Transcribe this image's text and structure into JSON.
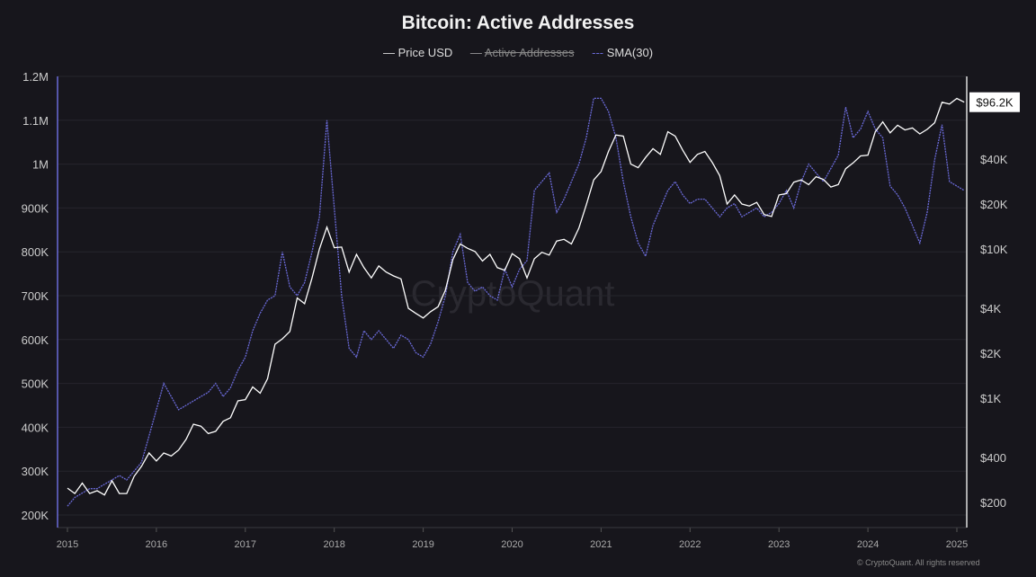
{
  "chart_data": {
    "type": "line",
    "title": "Bitcoin: Active Addresses",
    "legend": [
      {
        "name": "Price USD",
        "color": "#ffffff",
        "hidden": false
      },
      {
        "name": "Active Addresses",
        "color": "#9a9a9a",
        "hidden": true
      },
      {
        "name": "SMA(30)",
        "color": "#6a6ad8",
        "hidden": false
      }
    ],
    "legend_placement": "top-center",
    "x_ticks": [
      "2015",
      "2016",
      "2017",
      "2018",
      "2019",
      "2020",
      "2021",
      "2022",
      "2023",
      "2024",
      "2025"
    ],
    "y_left_ticks": [
      "1.2M",
      "1.1M",
      "1M",
      "900K",
      "800K",
      "700K",
      "600K",
      "500K",
      "400K",
      "300K",
      "200K"
    ],
    "y_left_range": [
      200000,
      1200000
    ],
    "y_right_ticks": [
      {
        "label": "$40K",
        "value": 40000
      },
      {
        "label": "$20K",
        "value": 20000
      },
      {
        "label": "$10K",
        "value": 10000
      },
      {
        "label": "$4K",
        "value": 4000
      },
      {
        "label": "$2K",
        "value": 2000
      },
      {
        "label": "$1K",
        "value": 1000
      },
      {
        "label": "$400",
        "value": 400
      },
      {
        "label": "$200",
        "value": 200
      }
    ],
    "y_right_scale": "log",
    "last_price_label": "$96.2K",
    "grid": true,
    "start": "2015-01",
    "price": [
      250,
      230,
      270,
      230,
      240,
      225,
      280,
      230,
      230,
      300,
      350,
      430,
      380,
      430,
      410,
      450,
      530,
      670,
      650,
      580,
      600,
      700,
      740,
      960,
      980,
      1190,
      1080,
      1350,
      2300,
      2500,
      2800,
      4700,
      4300,
      6400,
      10000,
      14000,
      10200,
      10300,
      7000,
      9200,
      7500,
      6400,
      7700,
      7000,
      6600,
      6300,
      4000,
      3700,
      3450,
      3800,
      4100,
      5300,
      8500,
      10800,
      10100,
      9600,
      8300,
      9200,
      7500,
      7200,
      9300,
      8600,
      6400,
      8600,
      9500,
      9100,
      11300,
      11600,
      10800,
      13800,
      19700,
      29000,
      33000,
      45000,
      58000,
      57000,
      37000,
      35000,
      41000,
      47000,
      43000,
      61000,
      57000,
      46000,
      38000,
      43000,
      45000,
      38000,
      31000,
      20000,
      23000,
      20000,
      19400,
      20500,
      17000,
      16500,
      23000,
      23500,
      28000,
      29000,
      27000,
      30500,
      29200,
      26000,
      27000,
      34500,
      37700,
      42000,
      42500,
      61000,
      71000,
      60000,
      67500,
      62700,
      64600,
      59000,
      63300,
      70000,
      96000,
      93500,
      102000,
      96200
    ],
    "sma30": [
      220000,
      240000,
      250000,
      260000,
      260000,
      270000,
      280000,
      290000,
      280000,
      300000,
      320000,
      380000,
      440000,
      500000,
      470000,
      440000,
      450000,
      460000,
      470000,
      480000,
      500000,
      470000,
      490000,
      530000,
      560000,
      620000,
      660000,
      690000,
      700000,
      800000,
      720000,
      700000,
      730000,
      800000,
      880000,
      1100000,
      900000,
      700000,
      580000,
      560000,
      620000,
      600000,
      620000,
      600000,
      580000,
      610000,
      600000,
      570000,
      560000,
      590000,
      640000,
      700000,
      800000,
      840000,
      730000,
      710000,
      720000,
      700000,
      690000,
      760000,
      720000,
      760000,
      780000,
      940000,
      960000,
      980000,
      890000,
      920000,
      960000,
      1000000,
      1060000,
      1150000,
      1150000,
      1120000,
      1060000,
      960000,
      880000,
      820000,
      790000,
      860000,
      900000,
      940000,
      960000,
      930000,
      910000,
      920000,
      920000,
      900000,
      880000,
      900000,
      910000,
      880000,
      890000,
      900000,
      880000,
      890000,
      910000,
      940000,
      900000,
      960000,
      1000000,
      980000,
      960000,
      990000,
      1020000,
      1130000,
      1060000,
      1080000,
      1120000,
      1080000,
      1060000,
      950000,
      930000,
      900000,
      860000,
      820000,
      890000,
      1010000,
      1090000,
      960000,
      950000,
      940000
    ]
  },
  "watermark": "CryptoQuant",
  "copyright": "© CryptoQuant. All rights reserved"
}
